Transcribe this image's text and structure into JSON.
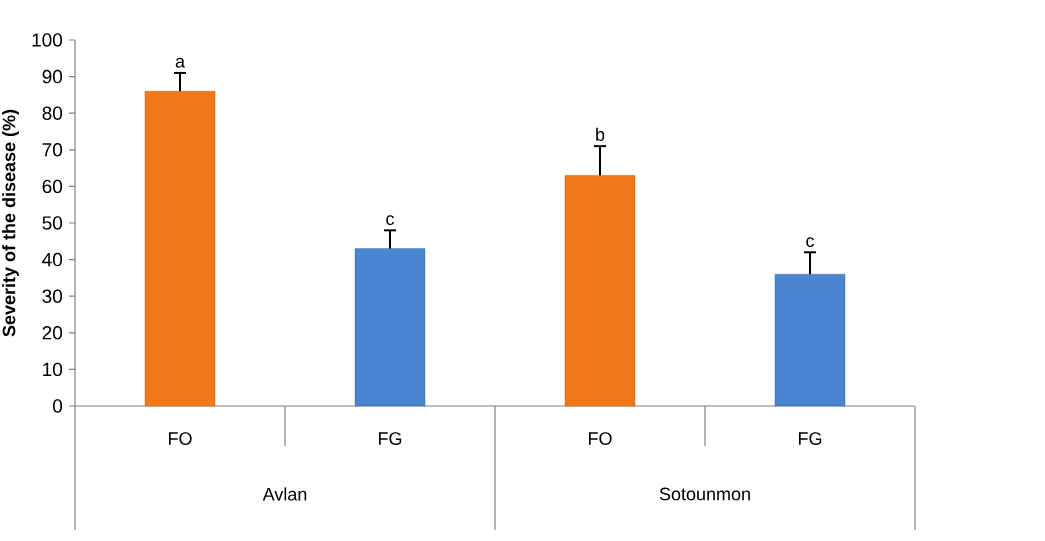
{
  "chart_data": {
    "type": "bar",
    "ylabel": "Severity of the disease (%)",
    "categories": [
      "FO",
      "FG",
      "FO",
      "FG"
    ],
    "values": [
      86,
      43,
      63,
      36
    ],
    "colors": [
      "#f07818",
      "#4a86d0",
      "#f07818",
      "#4a86d0"
    ],
    "errors": [
      5,
      5,
      8,
      6
    ],
    "ylim": [
      0,
      100
    ],
    "yticks": [
      0,
      10,
      20,
      30,
      40,
      50,
      60,
      70,
      80,
      90,
      100
    ],
    "annotations": [
      "a",
      "c",
      "b",
      "c",
      "Avlan",
      "Sotounmon"
    ]
  }
}
